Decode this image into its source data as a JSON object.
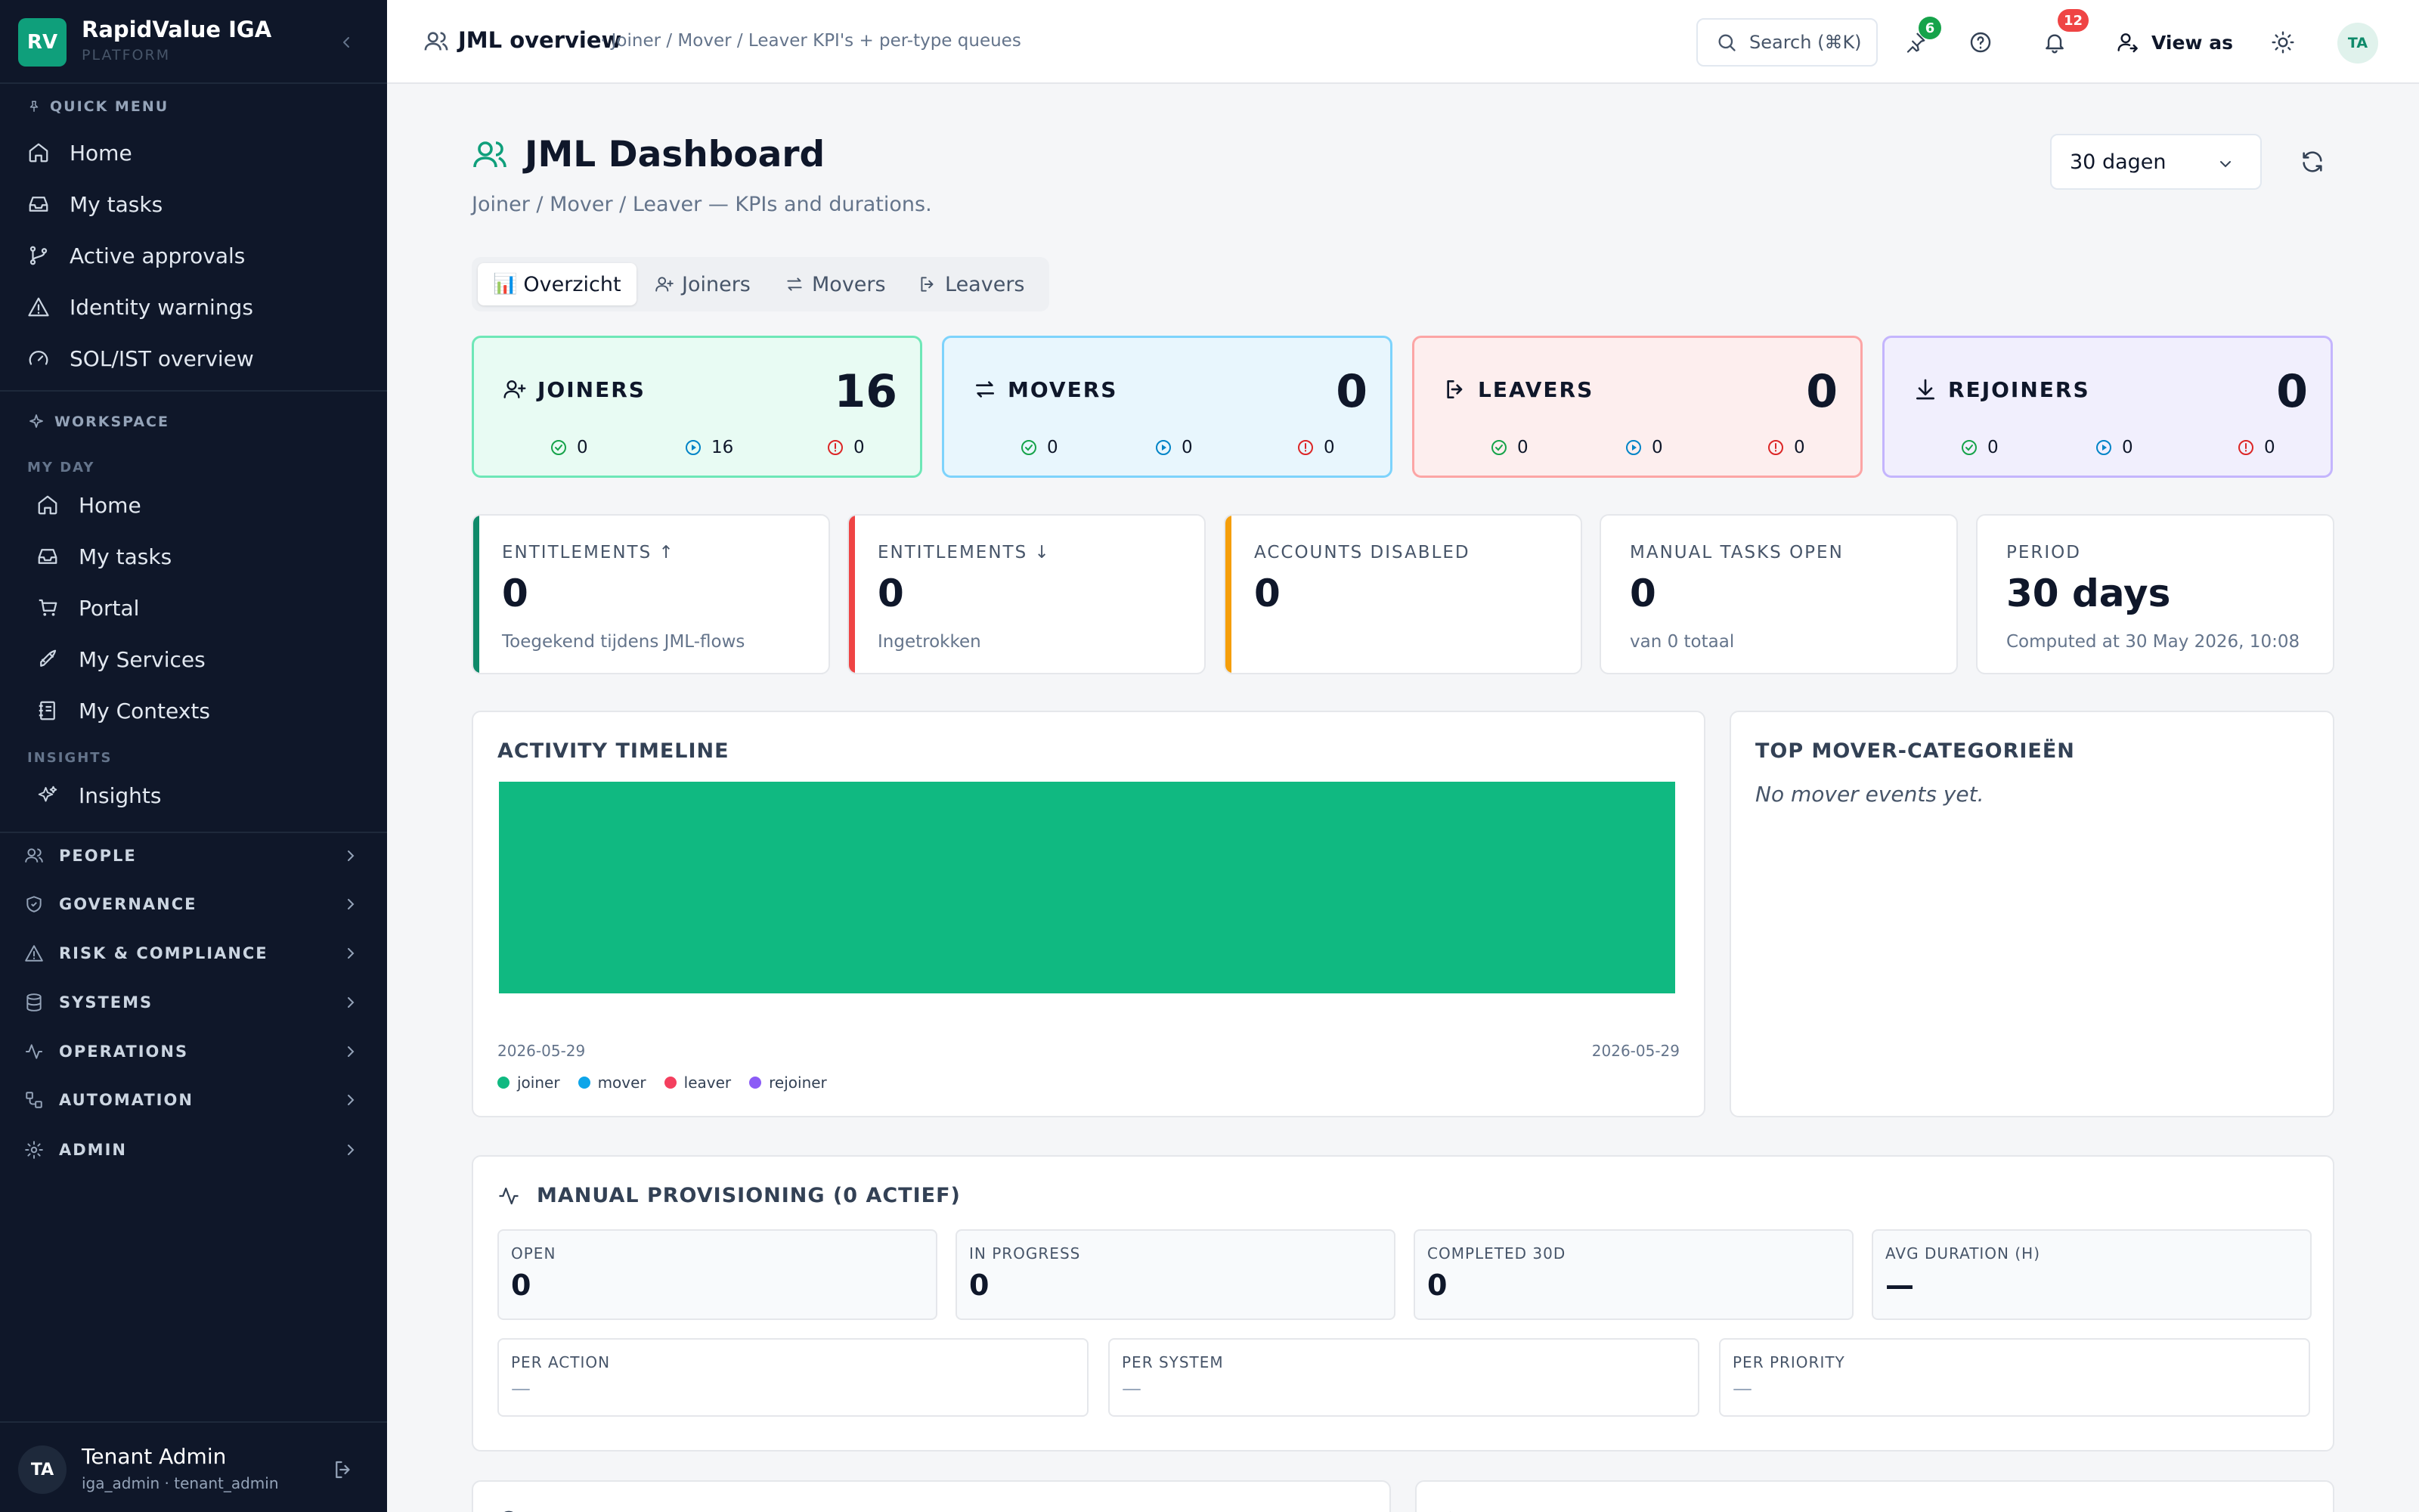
{
  "brand": {
    "logo": "RV",
    "name": "RapidValue IGA",
    "subtitle": "PLATFORM"
  },
  "sidebar": {
    "quick_menu_label": "QUICK MENU",
    "quick_items": [
      {
        "label": "Home",
        "icon": "home-icon"
      },
      {
        "label": "My tasks",
        "icon": "inbox-icon"
      },
      {
        "label": "Active approvals",
        "icon": "git-branch-icon"
      },
      {
        "label": "Identity warnings",
        "icon": "warning-icon"
      },
      {
        "label": "SOL/IST overview",
        "icon": "gauge-icon"
      }
    ],
    "workspace_label": "WORKSPACE",
    "my_day_label": "MY DAY",
    "my_day_items": [
      {
        "label": "Home",
        "icon": "home-icon"
      },
      {
        "label": "My tasks",
        "icon": "inbox-icon"
      },
      {
        "label": "Portal",
        "icon": "cart-icon"
      },
      {
        "label": "My Services",
        "icon": "rocket-icon"
      },
      {
        "label": "My Contexts",
        "icon": "notebook-icon"
      }
    ],
    "insights_label": "INSIGHTS",
    "insights_items": [
      {
        "label": "Insights",
        "icon": "sparkles-icon"
      }
    ],
    "groups": [
      {
        "label": "PEOPLE",
        "icon": "users-icon"
      },
      {
        "label": "GOVERNANCE",
        "icon": "shield-icon"
      },
      {
        "label": "RISK & COMPLIANCE",
        "icon": "warning-icon"
      },
      {
        "label": "SYSTEMS",
        "icon": "database-icon"
      },
      {
        "label": "OPERATIONS",
        "icon": "activity-icon"
      },
      {
        "label": "AUTOMATION",
        "icon": "workflow-icon"
      },
      {
        "label": "ADMIN",
        "icon": "gear-icon"
      }
    ],
    "user": {
      "initials": "TA",
      "name": "Tenant Admin",
      "role": "iga_admin · tenant_admin"
    }
  },
  "topbar": {
    "title": "JML overview",
    "breadcrumb": "· Joiner / Mover / Leaver KPI's + per-type queues",
    "search_label": "Search (⌘K)",
    "pin_badge": "6",
    "notif_badge": "12",
    "view_as_label": "View as",
    "avatar_initials": "TA",
    "colors": {
      "pin_badge": "#16a34a",
      "notif_badge": "#ef4444"
    }
  },
  "page": {
    "title": "JML Dashboard",
    "subtitle": "Joiner / Mover / Leaver — KPIs and durations.",
    "period_value": "30 dagen"
  },
  "tabs": [
    {
      "label": "Overzicht",
      "emoji": "📊",
      "active": true
    },
    {
      "label": "Joiners",
      "active": false
    },
    {
      "label": "Movers",
      "active": false
    },
    {
      "label": "Leavers",
      "active": false
    }
  ],
  "kpis": [
    {
      "label": "JOINERS",
      "value": "16",
      "done": "0",
      "running": "16",
      "failed": "0",
      "bg": "#e8fbf3",
      "border": "#6ee7b7"
    },
    {
      "label": "MOVERS",
      "value": "0",
      "done": "0",
      "running": "0",
      "failed": "0",
      "bg": "#e8f6fd",
      "border": "#7dd3fc"
    },
    {
      "label": "LEAVERS",
      "value": "0",
      "done": "0",
      "running": "0",
      "failed": "0",
      "bg": "#fdeeee",
      "border": "#fca5a5"
    },
    {
      "label": "REJOINERS",
      "value": "0",
      "done": "0",
      "running": "0",
      "failed": "0",
      "bg": "#f1effd",
      "border": "#c4b5fd"
    }
  ],
  "stats": [
    {
      "label": "ENTITLEMENTS ↑",
      "value": "0",
      "note": "Toegekend tijdens JML-flows",
      "accent": "#0f8a6a"
    },
    {
      "label": "ENTITLEMENTS ↓",
      "value": "0",
      "note": "Ingetrokken",
      "accent": "#ef4444"
    },
    {
      "label": "ACCOUNTS DISABLED",
      "value": "0",
      "note": "",
      "accent": "#f59e0b"
    },
    {
      "label": "MANUAL TASKS OPEN",
      "value": "0",
      "note": "van 0 totaal",
      "accent": ""
    },
    {
      "label": "PERIOD",
      "value": "30 days",
      "note": "Computed at 30 May 2026, 10:08",
      "accent": ""
    }
  ],
  "activity": {
    "title": "ACTIVITY TIMELINE",
    "x_start": "2026-05-29",
    "x_end": "2026-05-29",
    "legend": [
      {
        "label": "joiner",
        "color": "#10b981"
      },
      {
        "label": "mover",
        "color": "#0ea5e9"
      },
      {
        "label": "leaver",
        "color": "#f43f5e"
      },
      {
        "label": "rejoiner",
        "color": "#8b5cf6"
      }
    ]
  },
  "chart_data": {
    "type": "area",
    "title": "ACTIVITY TIMELINE",
    "x": [
      "2026-05-29"
    ],
    "series": [
      {
        "name": "joiner",
        "values": [
          16
        ],
        "color": "#10b981"
      },
      {
        "name": "mover",
        "values": [
          0
        ],
        "color": "#0ea5e9"
      },
      {
        "name": "leaver",
        "values": [
          0
        ],
        "color": "#f43f5e"
      },
      {
        "name": "rejoiner",
        "values": [
          0
        ],
        "color": "#8b5cf6"
      }
    ],
    "ylim": [
      0,
      16
    ],
    "legend": "bottom-left",
    "grid": false
  },
  "top_mover": {
    "title": "TOP MOVER-CATEGORIEËN",
    "empty": "No mover events yet."
  },
  "manual": {
    "title": "MANUAL PROVISIONING (0 ACTIEF)",
    "cards": [
      {
        "label": "OPEN",
        "value": "0"
      },
      {
        "label": "IN PROGRESS",
        "value": "0"
      },
      {
        "label": "COMPLETED 30D",
        "value": "0"
      },
      {
        "label": "AVG DURATION (H)",
        "value": "—"
      }
    ],
    "breakdowns": [
      {
        "label": "PER ACTION",
        "value": "—"
      },
      {
        "label": "PER SYSTEM",
        "value": "—"
      },
      {
        "label": "PER PRIORITY",
        "value": "—"
      }
    ]
  }
}
